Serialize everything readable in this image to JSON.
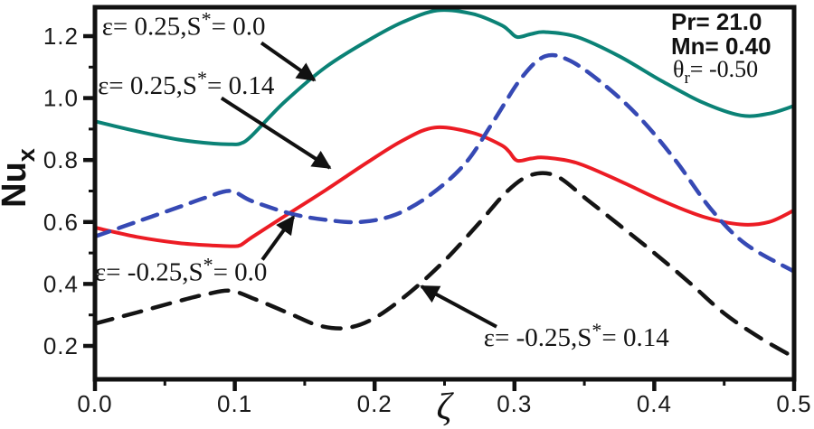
{
  "chart_data": {
    "type": "line",
    "title": "",
    "xlabel": "ζ",
    "ylabel": {
      "text": "Nu",
      "sub": "x"
    },
    "xlim": [
      0.0,
      0.5
    ],
    "ylim": [
      0.09,
      1.29
    ],
    "grid": false,
    "frame_color": "#111111",
    "x_major_ticks": [
      0.0,
      0.1,
      0.2,
      0.3,
      0.4,
      0.5
    ],
    "x_tick_labels": [
      "0.0",
      "0.1",
      "0.2",
      "0.3",
      "0.4",
      "0.5"
    ],
    "x_minor_ticks": [
      0.05,
      0.15,
      0.25,
      0.35,
      0.45
    ],
    "y_major_ticks": [
      0.2,
      0.4,
      0.6,
      0.8,
      1.0,
      1.2
    ],
    "y_tick_labels": [
      "0.2",
      "0.4",
      "0.6",
      "0.8",
      "1.0",
      "1.2"
    ],
    "y_minor_ticks": [
      0.3,
      0.5,
      0.7,
      0.9,
      1.1
    ],
    "series": [
      {
        "name": "epsilon = 0.25, S* = 0.0",
        "color": "#0B8276",
        "style": "solid",
        "width": 4,
        "points": [
          [
            0.0,
            0.925
          ],
          [
            0.03,
            0.893
          ],
          [
            0.06,
            0.866
          ],
          [
            0.085,
            0.853
          ],
          [
            0.098,
            0.851
          ],
          [
            0.104,
            0.853
          ],
          [
            0.112,
            0.878
          ],
          [
            0.135,
            0.985
          ],
          [
            0.165,
            1.1
          ],
          [
            0.195,
            1.185
          ],
          [
            0.22,
            1.245
          ],
          [
            0.245,
            1.283
          ],
          [
            0.27,
            1.272
          ],
          [
            0.29,
            1.237
          ],
          [
            0.296,
            1.218
          ],
          [
            0.302,
            1.197
          ],
          [
            0.312,
            1.207
          ],
          [
            0.322,
            1.213
          ],
          [
            0.345,
            1.197
          ],
          [
            0.375,
            1.135
          ],
          [
            0.405,
            1.056
          ],
          [
            0.435,
            0.985
          ],
          [
            0.462,
            0.944
          ],
          [
            0.482,
            0.95
          ],
          [
            0.5,
            0.975
          ]
        ]
      },
      {
        "name": "epsilon = 0.25, S* = 0.14",
        "color": "#EC1C24",
        "style": "solid",
        "width": 4,
        "points": [
          [
            0.0,
            0.582
          ],
          [
            0.03,
            0.552
          ],
          [
            0.06,
            0.532
          ],
          [
            0.085,
            0.524
          ],
          [
            0.098,
            0.522
          ],
          [
            0.104,
            0.525
          ],
          [
            0.112,
            0.55
          ],
          [
            0.135,
            0.617
          ],
          [
            0.165,
            0.703
          ],
          [
            0.195,
            0.793
          ],
          [
            0.22,
            0.863
          ],
          [
            0.243,
            0.905
          ],
          [
            0.27,
            0.888
          ],
          [
            0.29,
            0.85
          ],
          [
            0.296,
            0.828
          ],
          [
            0.302,
            0.798
          ],
          [
            0.312,
            0.805
          ],
          [
            0.322,
            0.808
          ],
          [
            0.345,
            0.79
          ],
          [
            0.375,
            0.733
          ],
          [
            0.405,
            0.67
          ],
          [
            0.435,
            0.617
          ],
          [
            0.462,
            0.592
          ],
          [
            0.482,
            0.6
          ],
          [
            0.5,
            0.638
          ]
        ]
      },
      {
        "name": "epsilon = -0.25, S* = 0.0",
        "color": "#3649B4",
        "style": "dashed",
        "dash": "17 11",
        "width": 4.5,
        "points": [
          [
            0.0,
            0.553
          ],
          [
            0.03,
            0.601
          ],
          [
            0.06,
            0.648
          ],
          [
            0.08,
            0.68
          ],
          [
            0.097,
            0.7
          ],
          [
            0.112,
            0.668
          ],
          [
            0.14,
            0.627
          ],
          [
            0.165,
            0.607
          ],
          [
            0.19,
            0.6
          ],
          [
            0.215,
            0.624
          ],
          [
            0.24,
            0.688
          ],
          [
            0.265,
            0.79
          ],
          [
            0.285,
            0.925
          ],
          [
            0.305,
            1.065
          ],
          [
            0.322,
            1.135
          ],
          [
            0.34,
            1.12
          ],
          [
            0.365,
            1.04
          ],
          [
            0.39,
            0.935
          ],
          [
            0.415,
            0.8
          ],
          [
            0.44,
            0.645
          ],
          [
            0.465,
            0.53
          ],
          [
            0.5,
            0.44
          ]
        ]
      },
      {
        "name": "epsilon = -0.25, S* = 0.14",
        "color": "#141414",
        "style": "dashed",
        "dash": "20 13",
        "width": 4.5,
        "points": [
          [
            0.0,
            0.272
          ],
          [
            0.03,
            0.308
          ],
          [
            0.06,
            0.345
          ],
          [
            0.08,
            0.367
          ],
          [
            0.097,
            0.378
          ],
          [
            0.115,
            0.35
          ],
          [
            0.14,
            0.303
          ],
          [
            0.16,
            0.266
          ],
          [
            0.18,
            0.258
          ],
          [
            0.2,
            0.29
          ],
          [
            0.225,
            0.372
          ],
          [
            0.25,
            0.475
          ],
          [
            0.275,
            0.598
          ],
          [
            0.295,
            0.7
          ],
          [
            0.312,
            0.752
          ],
          [
            0.33,
            0.748
          ],
          [
            0.352,
            0.672
          ],
          [
            0.375,
            0.59
          ],
          [
            0.4,
            0.5
          ],
          [
            0.425,
            0.405
          ],
          [
            0.45,
            0.305
          ],
          [
            0.475,
            0.228
          ],
          [
            0.5,
            0.163
          ]
        ]
      }
    ],
    "annotations": [
      {
        "pre": "ε= 0.25,S",
        "sup": "*",
        "post": "= 0.0",
        "label_x": 0.005,
        "label_y": 1.205,
        "arrow": [
          0.119,
          1.178,
          0.157,
          1.058
        ]
      },
      {
        "pre": "ε= 0.25,S",
        "sup": "*",
        "post": "= 0.14",
        "label_x": 0.002,
        "label_y": 1.013,
        "arrow": [
          0.0905,
          1.0,
          0.168,
          0.775
        ]
      },
      {
        "pre": "ε= -0.25,S",
        "sup": "*",
        "post": "= 0.0",
        "label_x": 0.0,
        "label_y": 0.412,
        "arrow": [
          0.1197,
          0.478,
          0.142,
          0.617
        ]
      },
      {
        "pre": "ε= -0.25,S",
        "sup": "*",
        "post": "= 0.14",
        "label_x": 0.278,
        "label_y": 0.2,
        "arrow": [
          0.2872,
          0.262,
          0.2335,
          0.392
        ]
      }
    ],
    "params": {
      "line1": "Pr= 21.0",
      "line2": "Mn= 0.40",
      "theta": {
        "symbol": "θ",
        "sub": "r",
        "rest": "= -0.50"
      }
    }
  }
}
